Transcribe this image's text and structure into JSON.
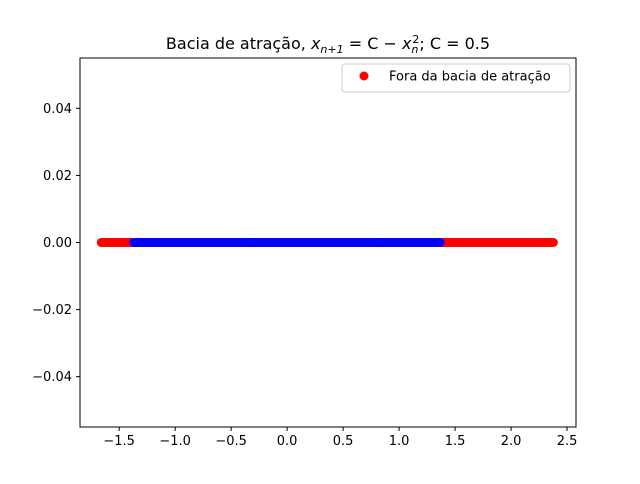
{
  "chart_data": {
    "type": "scatter",
    "title": {
      "prefix": "Bacia de atração, ",
      "formula_var": "x",
      "formula_sub1": "n+1",
      "formula_mid": " = C − ",
      "formula_var2": "x",
      "formula_sub2": "n",
      "formula_sup2": "2",
      "suffix": ";  C = 0.5"
    },
    "xlabel": "",
    "ylabel": "",
    "xlim": [
      -1.85,
      2.58
    ],
    "ylim": [
      -0.055,
      0.055
    ],
    "xticks": [
      -1.5,
      -1.0,
      -0.5,
      0.0,
      0.5,
      1.0,
      1.5,
      2.0,
      2.5
    ],
    "xtick_labels": [
      "−1.5",
      "−1.0",
      "−0.5",
      "0.0",
      "0.5",
      "1.0",
      "1.5",
      "2.0",
      "2.5"
    ],
    "yticks": [
      -0.04,
      -0.02,
      0.0,
      0.02,
      0.04
    ],
    "ytick_labels": [
      "−0.04",
      "−0.02",
      "0.00",
      "0.02",
      "0.04"
    ],
    "grid": false,
    "legend_position": "top-right",
    "series": [
      {
        "name": "Fora da bacia de atração",
        "color": "#ff0000",
        "segments": [
          [
            -1.66,
            -1.37
          ],
          [
            1.37,
            2.38
          ]
        ],
        "y": 0.0
      },
      {
        "name": "",
        "color": "#0000ff",
        "segments": [
          [
            -1.37,
            1.37
          ]
        ],
        "y": 0.0
      }
    ]
  }
}
